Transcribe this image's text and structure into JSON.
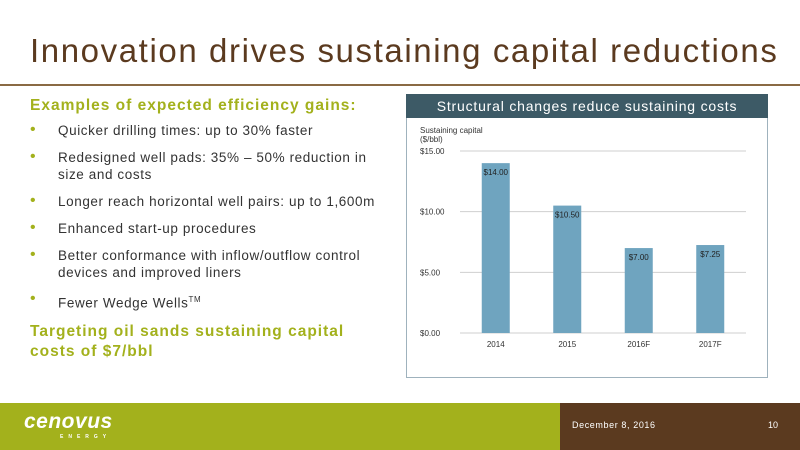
{
  "slide": {
    "title": "Innovation drives sustaining capital reductions",
    "subhead": "Examples of expected efficiency gains:",
    "bullets": [
      "Quicker drilling times: up to 30% faster",
      "Redesigned well pads: 35% – 50% reduction in size and costs",
      "Longer reach horizontal well pairs: up to 1,600m",
      "Enhanced start-up procedures",
      "Better conformance with inflow/outflow control devices and improved liners",
      "Fewer Wedge Wells"
    ],
    "bullet6_sup": "TM",
    "target": "Targeting oil sands sustaining capital costs of $7/bbl"
  },
  "chart_header": "Structural changes reduce sustaining costs",
  "chart_data": {
    "type": "bar",
    "title": "Structural changes reduce sustaining costs",
    "ylabel_line1": "Sustaining capital",
    "ylabel_line2": "($/bbl)",
    "categories": [
      "2014",
      "2015",
      "2016F",
      "2017F"
    ],
    "values": [
      14.0,
      10.5,
      7.0,
      7.25
    ],
    "value_labels": [
      "$14.00",
      "$10.50",
      "$7.00",
      "$7.25"
    ],
    "yticks": [
      0,
      5,
      10,
      15
    ],
    "ytick_labels": [
      "$0.00",
      "$5.00",
      "$10.00",
      "$15.00"
    ],
    "ylim": [
      0,
      15
    ],
    "grid": true,
    "bar_color": "#6fa4bf"
  },
  "footer": {
    "logo": "cenovus",
    "logo_sub": "ENERGY",
    "date": "December 8, 2016",
    "page": "10"
  },
  "colors": {
    "title": "#5b3a1f",
    "accent_green": "#a3b11c",
    "footer_brown": "#5b3a1f",
    "chart_header": "#3d5a66"
  }
}
